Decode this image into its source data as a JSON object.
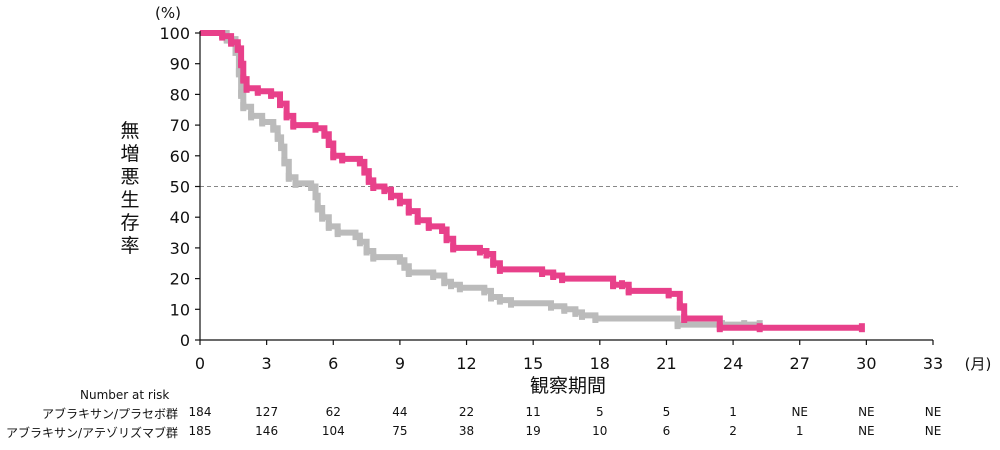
{
  "chart_data": {
    "type": "line",
    "step": true,
    "x_unit_label": "(月)",
    "y_unit_label": "(%)",
    "xlabel": "観察期間",
    "ylabel": "無増悪生存率",
    "xlim": [
      0,
      33
    ],
    "ylim": [
      0,
      100
    ],
    "x_ticks": [
      0,
      3,
      6,
      9,
      12,
      15,
      18,
      21,
      24,
      27,
      30,
      33
    ],
    "y_ticks": [
      0,
      10,
      20,
      30,
      40,
      50,
      60,
      70,
      80,
      90,
      100
    ],
    "x_tick_labels": [
      "0",
      "3",
      "6",
      "9",
      "12",
      "15",
      "18",
      "21",
      "24",
      "27",
      "30",
      "33"
    ],
    "y_tick_labels": [
      "0",
      "10",
      "20",
      "30",
      "40",
      "50",
      "60",
      "70",
      "80",
      "90",
      "100"
    ],
    "reference_line": {
      "y": 50,
      "style": "dashed"
    },
    "series": [
      {
        "name": "アブラキサン/アテゾリズマブ群",
        "color": "#e8408a",
        "points": [
          [
            0,
            100
          ],
          [
            1.0,
            99
          ],
          [
            1.4,
            97
          ],
          [
            1.7,
            95
          ],
          [
            1.85,
            90
          ],
          [
            1.95,
            85
          ],
          [
            2.1,
            82
          ],
          [
            2.6,
            81
          ],
          [
            3.2,
            80
          ],
          [
            3.6,
            77
          ],
          [
            3.9,
            73
          ],
          [
            4.2,
            70
          ],
          [
            5.2,
            69
          ],
          [
            5.6,
            67
          ],
          [
            5.8,
            64
          ],
          [
            6.0,
            60
          ],
          [
            6.4,
            59
          ],
          [
            7.2,
            58
          ],
          [
            7.4,
            55
          ],
          [
            7.6,
            52
          ],
          [
            7.8,
            50
          ],
          [
            8.3,
            49
          ],
          [
            8.6,
            47
          ],
          [
            9.0,
            45
          ],
          [
            9.4,
            42
          ],
          [
            9.8,
            39
          ],
          [
            10.3,
            37
          ],
          [
            10.9,
            36
          ],
          [
            11.1,
            33
          ],
          [
            11.4,
            30
          ],
          [
            12.6,
            29
          ],
          [
            12.9,
            28
          ],
          [
            13.2,
            25
          ],
          [
            13.5,
            23
          ],
          [
            15.4,
            22
          ],
          [
            15.9,
            21
          ],
          [
            16.3,
            20
          ],
          [
            18.6,
            18
          ],
          [
            19.0,
            18
          ],
          [
            19.3,
            16
          ],
          [
            21.1,
            15
          ],
          [
            21.6,
            11
          ],
          [
            21.8,
            7
          ],
          [
            23.4,
            4
          ],
          [
            25.2,
            4
          ],
          [
            29.8,
            4
          ]
        ]
      },
      {
        "name": "アブラキサン/プラセボ群",
        "color": "#bbbbbb",
        "points": [
          [
            0,
            100
          ],
          [
            1.2,
            98
          ],
          [
            1.6,
            94
          ],
          [
            1.75,
            87
          ],
          [
            1.85,
            80
          ],
          [
            1.95,
            76
          ],
          [
            2.3,
            73
          ],
          [
            2.8,
            71
          ],
          [
            3.3,
            69
          ],
          [
            3.5,
            66
          ],
          [
            3.65,
            63
          ],
          [
            3.8,
            58
          ],
          [
            4.0,
            53
          ],
          [
            4.3,
            51
          ],
          [
            5.0,
            50
          ],
          [
            5.2,
            47
          ],
          [
            5.3,
            43
          ],
          [
            5.5,
            40
          ],
          [
            5.8,
            37
          ],
          [
            6.2,
            35
          ],
          [
            7.0,
            34
          ],
          [
            7.2,
            32
          ],
          [
            7.5,
            29
          ],
          [
            7.8,
            27
          ],
          [
            9.0,
            26
          ],
          [
            9.2,
            24
          ],
          [
            9.4,
            22
          ],
          [
            10.5,
            21
          ],
          [
            11.0,
            19
          ],
          [
            11.3,
            18
          ],
          [
            11.7,
            17
          ],
          [
            12.8,
            16
          ],
          [
            13.1,
            14
          ],
          [
            13.5,
            13
          ],
          [
            14.0,
            12
          ],
          [
            15.8,
            11
          ],
          [
            16.4,
            10
          ],
          [
            16.9,
            9
          ],
          [
            17.2,
            8
          ],
          [
            17.8,
            7
          ],
          [
            21.5,
            5
          ],
          [
            23.5,
            5
          ],
          [
            24.5,
            5
          ],
          [
            25.2,
            5
          ]
        ]
      }
    ]
  },
  "risk_table": {
    "title": "Number at risk",
    "rows": [
      {
        "label": "アブラキサン/プラセボ群",
        "values": [
          "184",
          "127",
          "62",
          "44",
          "22",
          "11",
          "5",
          "5",
          "1",
          "NE",
          "NE",
          "NE"
        ]
      },
      {
        "label": "アブラキサン/アテゾリズマブ群",
        "values": [
          "185",
          "146",
          "104",
          "75",
          "38",
          "19",
          "10",
          "6",
          "2",
          "1",
          "NE",
          "NE"
        ]
      }
    ]
  }
}
